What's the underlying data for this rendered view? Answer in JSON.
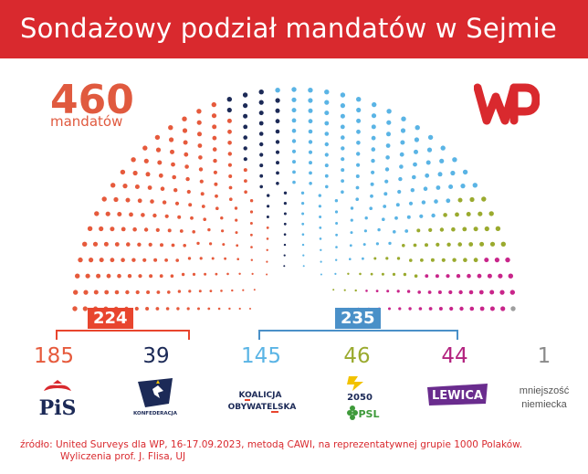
{
  "title": "Sondażowy podział mandatów w Sejmie",
  "total": {
    "value": "460",
    "label": "mandatów"
  },
  "colors": {
    "header": "#d9292e",
    "pis": "#e65a3c",
    "konfederacja": "#1c2a57",
    "ko": "#5ab4e5",
    "trzecia_droga": "#9aaa2e",
    "lewica": "#c8258a",
    "mniejszosc": "#9e9e9e",
    "bracket_right": "#4a90c8",
    "bracket_left": "#e8452e"
  },
  "coalitions": [
    {
      "seats": "224",
      "color": "#e8452e"
    },
    {
      "seats": "235",
      "color": "#4a90c8"
    }
  ],
  "parties": [
    {
      "seats": "185",
      "color": "#e65a3c",
      "logo_text": "PiS"
    },
    {
      "seats": "39",
      "color": "#1c2a57",
      "logo_text": "KONFEDERACJA"
    },
    {
      "seats": "145",
      "color": "#5ab4e5",
      "logo_line1": "KOALICJA",
      "logo_line2": "OBYWATELSKA"
    },
    {
      "seats": "46",
      "color": "#9aaa2e",
      "logo_line1": "2050",
      "logo_line2": "PSL"
    },
    {
      "seats": "44",
      "color": "#b3227f",
      "logo_text": "LEWICA"
    },
    {
      "seats": "1",
      "color": "#8a8a8a",
      "logo_line1": "mniejszość",
      "logo_line2": "niemiecka"
    }
  ],
  "chart_data": {
    "type": "parliament",
    "total_seats": 460,
    "categories": [
      "PiS",
      "Konfederacja",
      "Koalicja Obywatelska",
      "Trzecia Droga (Polska 2050 / PSL)",
      "Lewica",
      "Mniejszość niemiecka"
    ],
    "values": [
      185,
      39,
      145,
      46,
      44,
      1
    ],
    "coalitions": [
      {
        "members": [
          "PiS",
          "Konfederacja"
        ],
        "total": 224
      },
      {
        "members": [
          "Koalicja Obywatelska",
          "Trzecia Droga (Polska 2050 / PSL)",
          "Lewica"
        ],
        "total": 235
      }
    ]
  },
  "source": {
    "line1": "źródło: United Surveys dla WP, 16-17.09.2023, metodą CAWI, na reprezentatywnej grupie 1000 Polaków.",
    "line2": "Wyliczenia prof. J. Flisa, UJ"
  }
}
